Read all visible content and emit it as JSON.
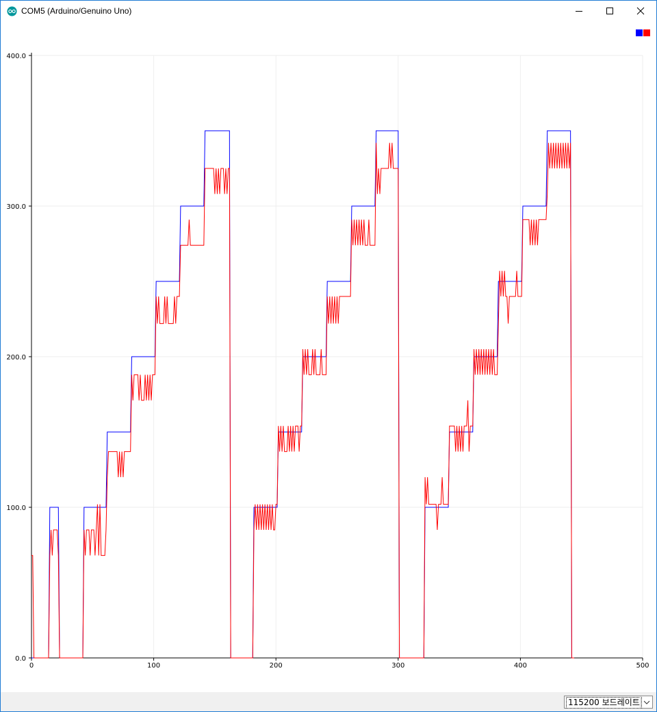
{
  "window": {
    "title": "COM5 (Arduino/Genuino Uno)",
    "icon": "arduino-icon",
    "controls": {
      "minimize_icon": "minimize-icon",
      "maximize_icon": "maximize-icon",
      "close_icon": "close-icon"
    }
  },
  "legend": [
    {
      "color": "#0000ff"
    },
    {
      "color": "#ff0000"
    }
  ],
  "statusbar": {
    "baud_rate": "115200 보드레이트",
    "dropdown_icon": "chevron-down-icon"
  },
  "chart_data": {
    "type": "line",
    "title": "",
    "xlabel": "",
    "ylabel": "",
    "xlim": [
      0,
      500
    ],
    "ylim": [
      0,
      400
    ],
    "x_ticks": [
      "0",
      "100",
      "200",
      "300",
      "400",
      "500"
    ],
    "y_ticks": [
      "0.0",
      "100.0",
      "200.0",
      "300.0",
      "400.0"
    ],
    "grid": true,
    "legend_position": "top-right",
    "series": [
      {
        "color": "#0000ff",
        "points": [
          [
            0,
            0
          ],
          [
            14,
            0
          ],
          [
            15,
            100
          ],
          [
            22,
            100
          ],
          [
            23,
            0
          ],
          [
            42,
            0
          ],
          [
            43,
            100
          ],
          [
            61,
            100
          ],
          [
            62,
            150
          ],
          [
            81,
            150
          ],
          [
            82,
            200
          ],
          [
            101,
            200
          ],
          [
            102,
            250
          ],
          [
            121,
            250
          ],
          [
            122,
            300
          ],
          [
            141,
            300
          ],
          [
            142,
            350
          ],
          [
            162,
            350
          ],
          [
            163,
            0
          ],
          [
            181,
            0
          ],
          [
            182,
            100
          ],
          [
            201,
            100
          ],
          [
            202,
            150
          ],
          [
            221,
            150
          ],
          [
            222,
            200
          ],
          [
            241,
            200
          ],
          [
            242,
            250
          ],
          [
            261,
            250
          ],
          [
            262,
            300
          ],
          [
            281,
            300
          ],
          [
            282,
            350
          ],
          [
            300,
            350
          ],
          [
            301,
            0
          ],
          [
            321,
            0
          ],
          [
            322,
            100
          ],
          [
            341,
            100
          ],
          [
            342,
            150
          ],
          [
            361,
            150
          ],
          [
            362,
            200
          ],
          [
            381,
            200
          ],
          [
            382,
            250
          ],
          [
            401,
            250
          ],
          [
            402,
            300
          ],
          [
            421,
            300
          ],
          [
            422,
            350
          ],
          [
            441,
            350
          ],
          [
            442,
            0
          ],
          [
            444,
            0
          ]
        ]
      },
      {
        "color": "#ff0000",
        "points": [
          [
            0,
            68
          ],
          [
            1,
            68
          ],
          [
            2,
            0
          ],
          [
            14,
            0
          ],
          [
            15,
            68
          ],
          [
            16,
            85
          ],
          [
            17,
            68
          ],
          [
            18,
            85
          ],
          [
            21,
            85
          ],
          [
            22,
            68
          ],
          [
            23,
            0
          ],
          [
            42,
            0
          ],
          [
            43,
            85
          ],
          [
            44,
            68
          ],
          [
            45,
            85
          ],
          [
            47,
            85
          ],
          [
            48,
            68
          ],
          [
            49,
            85
          ],
          [
            51,
            85
          ],
          [
            52,
            68
          ],
          [
            53,
            85
          ],
          [
            54,
            102
          ],
          [
            55,
            68
          ],
          [
            56,
            102
          ],
          [
            57,
            68
          ],
          [
            60,
            68
          ],
          [
            61,
            85
          ],
          [
            62,
            120
          ],
          [
            63,
            137
          ],
          [
            70,
            137
          ],
          [
            71,
            120
          ],
          [
            72,
            137
          ],
          [
            73,
            120
          ],
          [
            74,
            137
          ],
          [
            75,
            120
          ],
          [
            76,
            137
          ],
          [
            81,
            137
          ],
          [
            82,
            188
          ],
          [
            83,
            171
          ],
          [
            84,
            188
          ],
          [
            87,
            188
          ],
          [
            88,
            171
          ],
          [
            89,
            188
          ],
          [
            90,
            171
          ],
          [
            92,
            171
          ],
          [
            93,
            188
          ],
          [
            94,
            171
          ],
          [
            95,
            188
          ],
          [
            96,
            171
          ],
          [
            97,
            188
          ],
          [
            98,
            171
          ],
          [
            99,
            188
          ],
          [
            101,
            188
          ],
          [
            102,
            240
          ],
          [
            103,
            222
          ],
          [
            104,
            240
          ],
          [
            105,
            222
          ],
          [
            108,
            222
          ],
          [
            109,
            240
          ],
          [
            110,
            222
          ],
          [
            111,
            240
          ],
          [
            112,
            222
          ],
          [
            116,
            222
          ],
          [
            117,
            240
          ],
          [
            118,
            222
          ],
          [
            119,
            240
          ],
          [
            121,
            240
          ],
          [
            122,
            274
          ],
          [
            128,
            274
          ],
          [
            129,
            291
          ],
          [
            130,
            274
          ],
          [
            141,
            274
          ],
          [
            142,
            325
          ],
          [
            149,
            325
          ],
          [
            150,
            308
          ],
          [
            151,
            325
          ],
          [
            152,
            308
          ],
          [
            153,
            325
          ],
          [
            154,
            308
          ],
          [
            155,
            325
          ],
          [
            157,
            325
          ],
          [
            158,
            308
          ],
          [
            159,
            325
          ],
          [
            160,
            308
          ],
          [
            161,
            325
          ],
          [
            162,
            325
          ],
          [
            163,
            0
          ],
          [
            181,
            0
          ],
          [
            182,
            85
          ],
          [
            183,
            102
          ],
          [
            184,
            85
          ],
          [
            185,
            102
          ],
          [
            186,
            85
          ],
          [
            187,
            102
          ],
          [
            188,
            85
          ],
          [
            189,
            102
          ],
          [
            190,
            85
          ],
          [
            191,
            102
          ],
          [
            192,
            85
          ],
          [
            193,
            102
          ],
          [
            194,
            85
          ],
          [
            195,
            102
          ],
          [
            196,
            85
          ],
          [
            197,
            102
          ],
          [
            198,
            85
          ],
          [
            199,
            85
          ],
          [
            200,
            102
          ],
          [
            201,
            102
          ],
          [
            202,
            154
          ],
          [
            203,
            137
          ],
          [
            204,
            154
          ],
          [
            205,
            137
          ],
          [
            206,
            154
          ],
          [
            207,
            137
          ],
          [
            209,
            137
          ],
          [
            210,
            154
          ],
          [
            211,
            137
          ],
          [
            212,
            154
          ],
          [
            213,
            137
          ],
          [
            214,
            154
          ],
          [
            215,
            137
          ],
          [
            216,
            154
          ],
          [
            218,
            154
          ],
          [
            219,
            137
          ],
          [
            220,
            154
          ],
          [
            221,
            154
          ],
          [
            222,
            205
          ],
          [
            223,
            188
          ],
          [
            224,
            205
          ],
          [
            225,
            188
          ],
          [
            226,
            205
          ],
          [
            227,
            188
          ],
          [
            229,
            188
          ],
          [
            230,
            205
          ],
          [
            231,
            188
          ],
          [
            232,
            205
          ],
          [
            233,
            188
          ],
          [
            236,
            188
          ],
          [
            237,
            205
          ],
          [
            238,
            188
          ],
          [
            241,
            188
          ],
          [
            242,
            240
          ],
          [
            243,
            222
          ],
          [
            244,
            240
          ],
          [
            245,
            222
          ],
          [
            246,
            240
          ],
          [
            247,
            222
          ],
          [
            248,
            240
          ],
          [
            249,
            222
          ],
          [
            250,
            240
          ],
          [
            251,
            222
          ],
          [
            252,
            240
          ],
          [
            261,
            240
          ],
          [
            262,
            291
          ],
          [
            263,
            274
          ],
          [
            264,
            291
          ],
          [
            265,
            274
          ],
          [
            266,
            291
          ],
          [
            267,
            274
          ],
          [
            268,
            291
          ],
          [
            269,
            274
          ],
          [
            270,
            291
          ],
          [
            271,
            274
          ],
          [
            272,
            291
          ],
          [
            273,
            274
          ],
          [
            275,
            274
          ],
          [
            276,
            291
          ],
          [
            277,
            274
          ],
          [
            281,
            274
          ],
          [
            282,
            342
          ],
          [
            283,
            308
          ],
          [
            284,
            325
          ],
          [
            285,
            308
          ],
          [
            286,
            325
          ],
          [
            292,
            325
          ],
          [
            293,
            342
          ],
          [
            294,
            325
          ],
          [
            295,
            342
          ],
          [
            296,
            325
          ],
          [
            299,
            325
          ],
          [
            300,
            325
          ],
          [
            301,
            0
          ],
          [
            321,
            0
          ],
          [
            322,
            120
          ],
          [
            323,
            102
          ],
          [
            324,
            120
          ],
          [
            325,
            102
          ],
          [
            331,
            102
          ],
          [
            332,
            85
          ],
          [
            333,
            102
          ],
          [
            335,
            102
          ],
          [
            336,
            120
          ],
          [
            337,
            102
          ],
          [
            341,
            102
          ],
          [
            342,
            154
          ],
          [
            346,
            154
          ],
          [
            347,
            137
          ],
          [
            348,
            154
          ],
          [
            349,
            137
          ],
          [
            350,
            154
          ],
          [
            351,
            137
          ],
          [
            352,
            154
          ],
          [
            353,
            137
          ],
          [
            354,
            154
          ],
          [
            356,
            154
          ],
          [
            357,
            171
          ],
          [
            358,
            137
          ],
          [
            359,
            154
          ],
          [
            361,
            154
          ],
          [
            362,
            205
          ],
          [
            363,
            188
          ],
          [
            364,
            205
          ],
          [
            365,
            188
          ],
          [
            366,
            205
          ],
          [
            367,
            188
          ],
          [
            368,
            205
          ],
          [
            369,
            188
          ],
          [
            370,
            205
          ],
          [
            371,
            188
          ],
          [
            372,
            205
          ],
          [
            373,
            188
          ],
          [
            374,
            205
          ],
          [
            375,
            188
          ],
          [
            376,
            205
          ],
          [
            377,
            188
          ],
          [
            378,
            205
          ],
          [
            379,
            188
          ],
          [
            381,
            188
          ],
          [
            382,
            222
          ],
          [
            383,
            257
          ],
          [
            384,
            240
          ],
          [
            385,
            257
          ],
          [
            386,
            240
          ],
          [
            387,
            257
          ],
          [
            388,
            240
          ],
          [
            389,
            240
          ],
          [
            390,
            222
          ],
          [
            391,
            240
          ],
          [
            396,
            240
          ],
          [
            397,
            257
          ],
          [
            398,
            240
          ],
          [
            401,
            240
          ],
          [
            402,
            291
          ],
          [
            407,
            291
          ],
          [
            408,
            274
          ],
          [
            409,
            291
          ],
          [
            410,
            274
          ],
          [
            411,
            291
          ],
          [
            412,
            274
          ],
          [
            413,
            291
          ],
          [
            414,
            274
          ],
          [
            415,
            291
          ],
          [
            421,
            291
          ],
          [
            422,
            308
          ],
          [
            423,
            342
          ],
          [
            424,
            325
          ],
          [
            425,
            342
          ],
          [
            426,
            325
          ],
          [
            427,
            342
          ],
          [
            428,
            325
          ],
          [
            429,
            342
          ],
          [
            430,
            325
          ],
          [
            431,
            342
          ],
          [
            432,
            325
          ],
          [
            433,
            342
          ],
          [
            434,
            325
          ],
          [
            435,
            342
          ],
          [
            436,
            325
          ],
          [
            437,
            342
          ],
          [
            438,
            325
          ],
          [
            439,
            342
          ],
          [
            440,
            325
          ],
          [
            441,
            342
          ],
          [
            442,
            0
          ],
          [
            444,
            0
          ]
        ]
      }
    ]
  }
}
